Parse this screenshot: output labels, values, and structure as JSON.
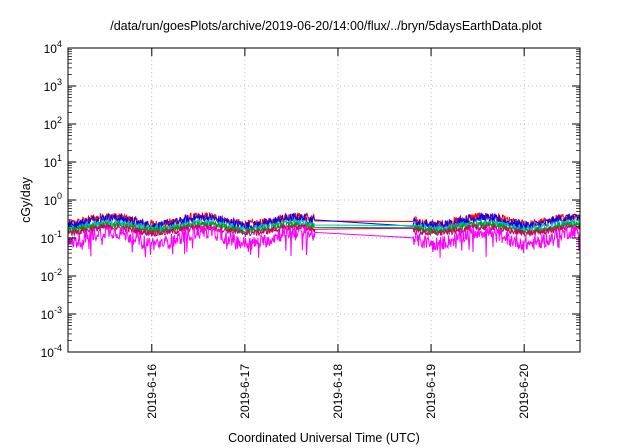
{
  "chart_data": {
    "type": "line",
    "title": "/data/run/goesPlots/archive/2019-06-20/14:00/flux/../bryn/5daysEarthData.plot",
    "xlabel": "Coordinated Universal Time (UTC)",
    "ylabel": "cGy/day",
    "yscale": "log",
    "ylim": [
      0.0001,
      10000
    ],
    "xlim": [
      15.1,
      20.6
    ],
    "grid": true,
    "legend": "none",
    "y_ticks": [
      {
        "value": 0.0001,
        "base": "10",
        "exp": "-4"
      },
      {
        "value": 0.001,
        "base": "10",
        "exp": "-3"
      },
      {
        "value": 0.01,
        "base": "10",
        "exp": "-2"
      },
      {
        "value": 0.1,
        "base": "10",
        "exp": "-1"
      },
      {
        "value": 1,
        "base": "10",
        "exp": "0"
      },
      {
        "value": 10,
        "base": "10",
        "exp": "1"
      },
      {
        "value": 100,
        "base": "10",
        "exp": "2"
      },
      {
        "value": 1000,
        "base": "10",
        "exp": "3"
      },
      {
        "value": 10000,
        "base": "10",
        "exp": "4"
      }
    ],
    "x_ticks": [
      {
        "value": 16,
        "label": "2019-6-16"
      },
      {
        "value": 17,
        "label": "2019-6-17"
      },
      {
        "value": 18,
        "label": "2019-6-18"
      },
      {
        "value": 19,
        "label": "2019-6-19"
      },
      {
        "value": 20,
        "label": "2019-6-20"
      }
    ],
    "data_gap": [
      17.75,
      18.8
    ],
    "series": [
      {
        "color": "#ff0000",
        "upper": 0.45,
        "lower": 0.13,
        "gap_value": 0.28
      },
      {
        "color": "#0000ff",
        "upper": 0.42,
        "lower": 0.12,
        "gap_value": 0.3
      },
      {
        "color": "#00bfbf",
        "upper": 0.3,
        "lower": 0.11,
        "gap_value": 0.22
      },
      {
        "color": "#00a000",
        "upper": 0.26,
        "lower": 0.1,
        "gap_value": 0.19
      },
      {
        "color": "#cc0066",
        "upper": 0.22,
        "lower": 0.09,
        "gap_value": 0.17
      },
      {
        "color": "#ff00ff",
        "upper": 0.2,
        "lower": 0.03,
        "gap_value": 0.14
      }
    ]
  }
}
